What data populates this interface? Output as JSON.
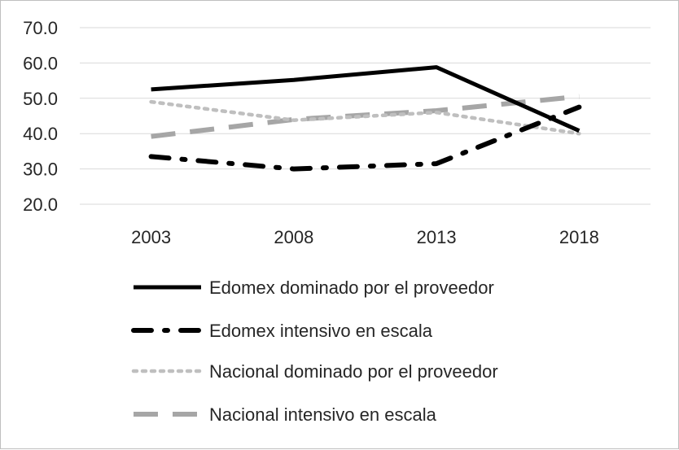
{
  "chart_data": {
    "type": "line",
    "title": "",
    "xlabel": "",
    "ylabel": "",
    "categories": [
      "2003",
      "2008",
      "2013",
      "2018"
    ],
    "ylim": [
      20,
      70
    ],
    "yticks": [
      "20.0",
      "30.0",
      "40.0",
      "50.0",
      "60.0",
      "70.0"
    ],
    "grid": true,
    "legend_position": "bottom",
    "series": [
      {
        "name": "Edomex dominado por el proveedor",
        "style": "solid",
        "color": "#000000",
        "values": [
          52.5,
          55.2,
          58.8,
          40.8
        ]
      },
      {
        "name": "Edomex intensivo en escala",
        "style": "dashdot",
        "color": "#000000",
        "values": [
          33.5,
          30.0,
          31.5,
          47.5
        ]
      },
      {
        "name": "Nacional dominado por el proveedor",
        "style": "dotted",
        "color": "#bfbfbf",
        "values": [
          49.0,
          43.8,
          46.0,
          40.0
        ]
      },
      {
        "name": "Nacional intensivo en escala",
        "style": "dashed",
        "color": "#a6a6a6",
        "values": [
          39.2,
          44.0,
          46.5,
          50.5
        ]
      }
    ]
  }
}
